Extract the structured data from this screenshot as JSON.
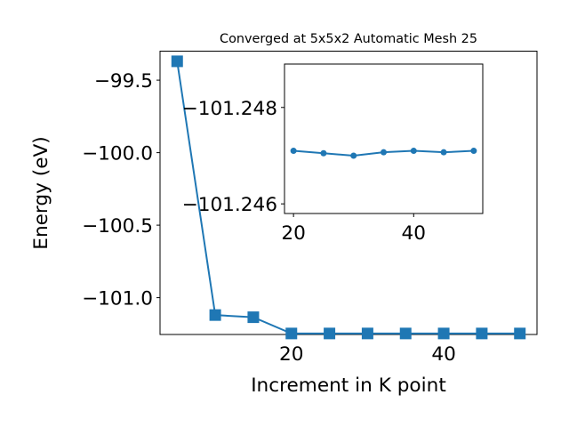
{
  "chart_data": [
    {
      "type": "line",
      "title": "Converged at 5x5x2 Automatic Mesh 25",
      "xlabel": "Increment in K point",
      "ylabel": "Energy (eV)",
      "xlim": [
        2.75,
        52.25
      ],
      "ylim": [
        -101.254,
        -99.3
      ],
      "xticks": [
        20,
        40
      ],
      "yticks": [
        -99.5,
        -100.0,
        -100.5,
        -101.0
      ],
      "xtick_labels": [
        "20",
        "40"
      ],
      "ytick_labels": [
        "−99.5",
        "−100.0",
        "−100.5",
        "−101.0"
      ],
      "grid": false,
      "color": "#1f77b4",
      "marker": "square",
      "series": [
        {
          "x": [
            5,
            10,
            15,
            20,
            25,
            30,
            35,
            40,
            45,
            50
          ],
          "y": [
            -99.37,
            -101.12,
            -101.135,
            -101.2471,
            -101.24705,
            -101.247,
            -101.24707,
            -101.2471,
            -101.24707,
            -101.2471
          ]
        }
      ]
    },
    {
      "type": "line",
      "title": "",
      "xlabel": "",
      "ylabel": "",
      "xlim": [
        18.5,
        51.5
      ],
      "ylim": [
        -101.2458,
        -101.2489
      ],
      "xticks": [
        20,
        40
      ],
      "yticks": [
        -101.248,
        -101.246
      ],
      "xtick_labels": [
        "20",
        "40"
      ],
      "ytick_labels": [
        "−101.248",
        "−101.246"
      ],
      "grid": false,
      "color": "#1f77b4",
      "marker": "circle",
      "series": [
        {
          "x": [
            20,
            25,
            30,
            35,
            40,
            45,
            50
          ],
          "y": [
            -101.2471,
            -101.24705,
            -101.247,
            -101.24707,
            -101.2471,
            -101.24707,
            -101.2471
          ]
        }
      ]
    }
  ]
}
